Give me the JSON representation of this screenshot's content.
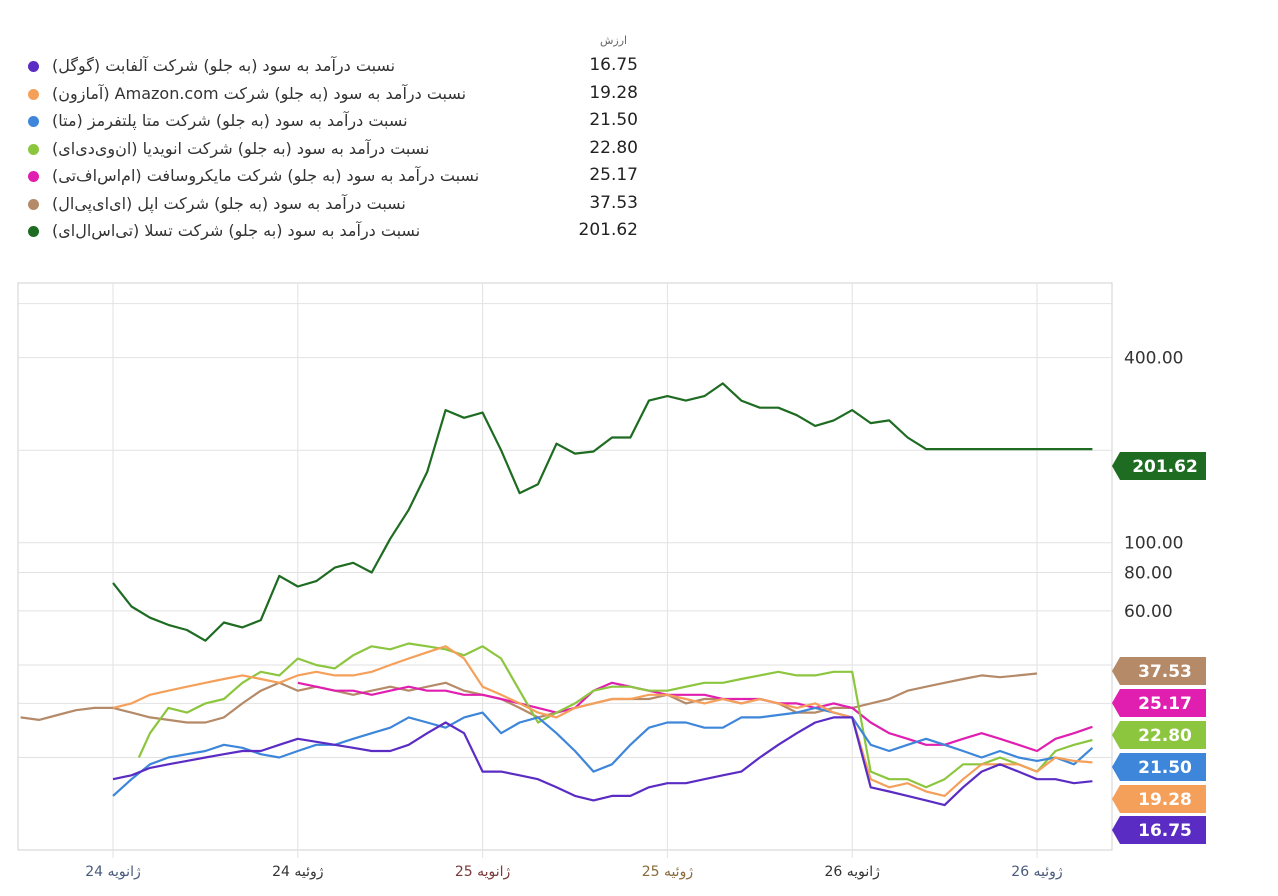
{
  "legend": {
    "header": "ارزش",
    "items": [
      {
        "label": "نسبت درآمد به سود (به جلو) شرکت آلفابت (گوگل)",
        "value": "16.75",
        "color": "#5b2cc4"
      },
      {
        "label": "نسبت درآمد به سود (به جلو) شرکت Amazon.com (آمازون)",
        "value": "19.28",
        "color": "#f5a05a"
      },
      {
        "label": "نسبت درآمد به سود (به جلو) شرکت متا پلتفرمز (متا)",
        "value": "21.50",
        "color": "#3d86d9"
      },
      {
        "label": "نسبت درآمد به سود (به جلو) شرکت انویدیا (ان‌وی‌دی‌ای)",
        "value": "22.80",
        "color": "#8cc63f"
      },
      {
        "label": "نسبت درآمد به سود (به جلو) شرکت مایکروسافت (ام‌اس‌اف‌تی)",
        "value": "25.17",
        "color": "#e01fb0"
      },
      {
        "label": "نسبت درآمد به سود (به جلو) شرکت اپل (ای‌ای‌پی‌ال)",
        "value": "37.53",
        "color": "#b58a68"
      },
      {
        "label": "نسبت درآمد به سود (به جلو) شرکت تسلا (تی‌اس‌ال‌ای)",
        "value": "201.62",
        "color": "#1e6b22"
      }
    ]
  },
  "chart_data": {
    "type": "line",
    "yscale": "log",
    "ylim": [
      10,
      700
    ],
    "yticks": [
      "400.00",
      "100.00",
      "80.00",
      "60.00"
    ],
    "xlim": [
      2024.0,
      2026.5
    ],
    "xticks": [
      {
        "label": "24 ژانویه",
        "x": 2024.0,
        "color": "#4a5a7a"
      },
      {
        "label": "24 ژوئیه",
        "x": 2024.5,
        "color": "#333333"
      },
      {
        "label": "25 ژانویه",
        "x": 2025.0,
        "color": "#7a3a3a"
      },
      {
        "label": "25 ژوئیه",
        "x": 2025.5,
        "color": "#8a6a3a"
      },
      {
        "label": "26 ژانویه",
        "x": 2026.0,
        "color": "#333333"
      },
      {
        "label": "26 ژوئیه",
        "x": 2026.5,
        "color": "#4a5a7a"
      }
    ],
    "series": [
      {
        "name": "TSLA",
        "color": "#1e6b22",
        "badge": "201.62",
        "bg": "#1e6b22",
        "x": [
          2024.0,
          2024.05,
          2024.1,
          2024.15,
          2024.2,
          2024.25,
          2024.3,
          2024.35,
          2024.4,
          2024.45,
          2024.5,
          2024.55,
          2024.6,
          2024.65,
          2024.7,
          2024.75,
          2024.8,
          2024.85,
          2024.9,
          2024.95,
          2025.0,
          2025.05,
          2025.1,
          2025.15,
          2025.2,
          2025.25,
          2025.3,
          2025.35,
          2025.4,
          2025.45,
          2025.5,
          2025.55,
          2025.6,
          2025.65,
          2025.7,
          2025.75,
          2025.8,
          2025.85,
          2025.9,
          2025.95,
          2026.0,
          2026.05,
          2026.1,
          2026.15,
          2026.2,
          2026.25,
          2026.3,
          2026.35,
          2026.4,
          2026.45,
          2026.5,
          2026.55,
          2026.6,
          2026.65
        ],
        "y": [
          74,
          62,
          57,
          54,
          52,
          48,
          55,
          53,
          56,
          78,
          72,
          75,
          83,
          86,
          80,
          103,
          128,
          170,
          270,
          255,
          265,
          200,
          145,
          155,
          210,
          195,
          198,
          220,
          220,
          290,
          300,
          290,
          300,
          330,
          290,
          275,
          275,
          260,
          240,
          250,
          270,
          245,
          250,
          220,
          201.62,
          201.62,
          201.62,
          201.62,
          201.62,
          201.62,
          201.62,
          201.62,
          201.62,
          201.62
        ]
      },
      {
        "name": "AAPL",
        "color": "#b58a68",
        "badge": "37.53",
        "bg": "#b58a68",
        "x": [
          2023.75,
          2023.8,
          2023.85,
          2023.9,
          2023.95,
          2024.0,
          2024.05,
          2024.1,
          2024.15,
          2024.2,
          2024.25,
          2024.3,
          2024.35,
          2024.4,
          2024.45,
          2024.5,
          2024.55,
          2024.6,
          2024.65,
          2024.7,
          2024.75,
          2024.8,
          2024.85,
          2024.9,
          2024.95,
          2025.0,
          2025.05,
          2025.1,
          2025.15,
          2025.2,
          2025.25,
          2025.3,
          2025.35,
          2025.4,
          2025.45,
          2025.5,
          2025.55,
          2025.6,
          2025.65,
          2025.7,
          2025.75,
          2025.8,
          2025.85,
          2025.9,
          2025.95,
          2026.0,
          2026.05,
          2026.1,
          2026.15,
          2026.2,
          2026.25,
          2026.3,
          2026.35,
          2026.4,
          2026.45,
          2026.5
        ],
        "y": [
          27,
          26.5,
          27.5,
          28.5,
          29,
          29,
          28,
          27,
          26.5,
          26,
          26,
          27,
          30,
          33,
          35,
          33,
          34,
          33,
          32,
          33,
          34,
          33,
          34,
          35,
          33,
          32,
          31,
          29,
          27,
          28,
          29,
          30,
          31,
          31,
          31,
          32,
          30,
          31,
          31,
          30,
          31,
          30,
          28,
          28,
          29,
          29,
          30,
          31,
          33,
          34,
          35,
          36,
          37,
          36.5,
          37,
          37.53
        ]
      },
      {
        "name": "MSFT",
        "color": "#e01fb0",
        "badge": "25.17",
        "bg": "#e01fb0",
        "x": [
          2024.5,
          2024.55,
          2024.6,
          2024.65,
          2024.7,
          2024.75,
          2024.8,
          2024.85,
          2024.9,
          2024.95,
          2025.0,
          2025.05,
          2025.1,
          2025.15,
          2025.2,
          2025.25,
          2025.3,
          2025.35,
          2025.4,
          2025.45,
          2025.5,
          2025.55,
          2025.6,
          2025.65,
          2025.7,
          2025.75,
          2025.8,
          2025.85,
          2025.9,
          2025.95,
          2026.0,
          2026.05,
          2026.1,
          2026.15,
          2026.2,
          2026.25,
          2026.3,
          2026.35,
          2026.4,
          2026.45,
          2026.5,
          2026.55,
          2026.6,
          2026.65
        ],
        "y": [
          35,
          34,
          33,
          33,
          32,
          33,
          34,
          33,
          33,
          32,
          32,
          31,
          30,
          29,
          28,
          29,
          33,
          35,
          34,
          33,
          32,
          32,
          32,
          31,
          31,
          31,
          30,
          30,
          29,
          30,
          29,
          26,
          24,
          23,
          22,
          22,
          23,
          24,
          23,
          22,
          21,
          23,
          24,
          25.17
        ]
      },
      {
        "name": "NVDA",
        "color": "#8cc63f",
        "badge": "22.80",
        "bg": "#8cc63f",
        "x": [
          2024.07,
          2024.1,
          2024.15,
          2024.2,
          2024.25,
          2024.3,
          2024.35,
          2024.4,
          2024.45,
          2024.5,
          2024.55,
          2024.6,
          2024.65,
          2024.7,
          2024.75,
          2024.8,
          2024.85,
          2024.9,
          2024.95,
          2025.0,
          2025.05,
          2025.1,
          2025.15,
          2025.2,
          2025.25,
          2025.3,
          2025.35,
          2025.4,
          2025.45,
          2025.5,
          2025.55,
          2025.6,
          2025.65,
          2025.7,
          2025.75,
          2025.8,
          2025.85,
          2025.9,
          2025.95,
          2026.0,
          2026.05,
          2026.1,
          2026.15,
          2026.2,
          2026.25,
          2026.3,
          2026.35,
          2026.4,
          2026.45,
          2026.5,
          2026.55,
          2026.6,
          2026.65
        ],
        "y": [
          20,
          24,
          29,
          28,
          30,
          31,
          35,
          38,
          37,
          42,
          40,
          39,
          43,
          46,
          45,
          47,
          46,
          45,
          43,
          46,
          42,
          33,
          26,
          28,
          30,
          33,
          34,
          34,
          33,
          33,
          34,
          35,
          35,
          36,
          37,
          38,
          37,
          37,
          38,
          38,
          18,
          17,
          17,
          16,
          17,
          19,
          19,
          20,
          19,
          18,
          21,
          22,
          22.8
        ]
      },
      {
        "name": "META",
        "color": "#3d86d9",
        "badge": "21.50",
        "bg": "#3d86d9",
        "x": [
          2024.0,
          2024.05,
          2024.1,
          2024.15,
          2024.2,
          2024.25,
          2024.3,
          2024.35,
          2024.4,
          2024.45,
          2024.5,
          2024.55,
          2024.6,
          2024.65,
          2024.7,
          2024.75,
          2024.8,
          2024.85,
          2024.9,
          2024.95,
          2025.0,
          2025.05,
          2025.1,
          2025.15,
          2025.2,
          2025.25,
          2025.3,
          2025.35,
          2025.4,
          2025.45,
          2025.5,
          2025.55,
          2025.6,
          2025.65,
          2025.7,
          2025.75,
          2025.8,
          2025.85,
          2025.9,
          2025.95,
          2026.0,
          2026.05,
          2026.1,
          2026.15,
          2026.2,
          2026.25,
          2026.3,
          2026.35,
          2026.4,
          2026.45,
          2026.5,
          2026.55,
          2026.6,
          2026.65
        ],
        "y": [
          15,
          17,
          19,
          20,
          20.5,
          21,
          22,
          21.5,
          20.5,
          20,
          21,
          22,
          22,
          23,
          24,
          25,
          27,
          26,
          25,
          27,
          28,
          24,
          26,
          27,
          24,
          21,
          18,
          19,
          22,
          25,
          26,
          26,
          25,
          25,
          27,
          27,
          27.5,
          28,
          29,
          28,
          27,
          22,
          21,
          22,
          23,
          22,
          21,
          20,
          21,
          20,
          19.5,
          20,
          19,
          21.5
        ]
      },
      {
        "name": "AMZN",
        "color": "#f5a05a",
        "badge": "19.28",
        "bg": "#f5a05a",
        "x": [
          2024.0,
          2024.05,
          2024.1,
          2024.15,
          2024.2,
          2024.25,
          2024.3,
          2024.35,
          2024.4,
          2024.45,
          2024.5,
          2024.55,
          2024.6,
          2024.65,
          2024.7,
          2024.75,
          2024.8,
          2024.85,
          2024.9,
          2024.95,
          2025.0,
          2025.05,
          2025.1,
          2025.15,
          2025.2,
          2025.25,
          2025.3,
          2025.35,
          2025.4,
          2025.45,
          2025.5,
          2025.55,
          2025.6,
          2025.65,
          2025.7,
          2025.75,
          2025.8,
          2025.85,
          2025.9,
          2025.95,
          2026.0,
          2026.05,
          2026.1,
          2026.15,
          2026.2,
          2026.25,
          2026.3,
          2026.35,
          2026.4,
          2026.45,
          2026.5,
          2026.55,
          2026.6,
          2026.65
        ],
        "y": [
          29,
          30,
          32,
          33,
          34,
          35,
          36,
          37,
          36,
          35,
          37,
          38,
          37,
          37,
          38,
          40,
          42,
          44,
          46,
          42,
          34,
          32,
          30,
          28,
          27,
          29,
          30,
          31,
          31,
          32,
          32,
          31,
          30,
          31,
          30,
          31,
          30,
          29,
          30,
          28,
          27,
          17,
          16,
          16.5,
          15.5,
          15,
          17,
          19,
          19,
          19,
          18,
          20,
          19.5,
          19.28
        ]
      },
      {
        "name": "GOOGL",
        "color": "#5b2cc4",
        "badge": "16.75",
        "bg": "#5b2cc4",
        "x": [
          2024.0,
          2024.05,
          2024.1,
          2024.15,
          2024.2,
          2024.25,
          2024.3,
          2024.35,
          2024.4,
          2024.45,
          2024.5,
          2024.55,
          2024.6,
          2024.65,
          2024.7,
          2024.75,
          2024.8,
          2024.85,
          2024.9,
          2024.95,
          2025.0,
          2025.05,
          2025.1,
          2025.15,
          2025.2,
          2025.25,
          2025.3,
          2025.35,
          2025.4,
          2025.45,
          2025.5,
          2025.55,
          2025.6,
          2025.65,
          2025.7,
          2025.75,
          2025.8,
          2025.85,
          2025.9,
          2025.95,
          2026.0,
          2026.05,
          2026.1,
          2026.15,
          2026.2,
          2026.25,
          2026.3,
          2026.35,
          2026.4,
          2026.45,
          2026.5,
          2026.55,
          2026.6,
          2026.65
        ],
        "y": [
          17,
          17.5,
          18.5,
          19,
          19.5,
          20,
          20.5,
          21,
          21,
          22,
          23,
          22.5,
          22,
          21.5,
          21,
          21,
          22,
          24,
          26,
          24,
          18,
          18,
          17.5,
          17,
          16,
          15,
          14.5,
          15,
          15,
          16,
          16.5,
          16.5,
          17,
          17.5,
          18,
          20,
          22,
          24,
          26,
          27,
          27,
          16,
          15.5,
          15,
          14.5,
          14,
          16,
          18,
          19,
          18,
          17,
          17,
          16.5,
          16.75
        ]
      }
    ]
  }
}
